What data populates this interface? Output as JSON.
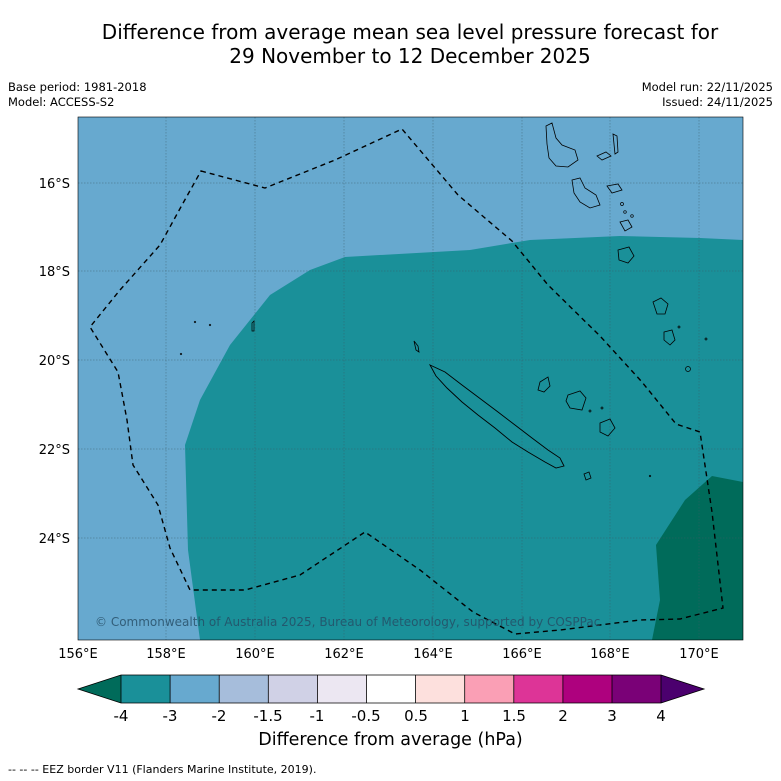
{
  "title_line1": "Difference from average mean sea level pressure forecast for",
  "title_line2": "29 November to 12 December 2025",
  "meta": {
    "base_period": "Base period: 1981-2018",
    "model": "Model: ACCESS-S2",
    "model_run": "Model run: 22/11/2025",
    "issued": "Issued: 24/11/2025"
  },
  "map": {
    "lon_labels": [
      "156°E",
      "158°E",
      "160°E",
      "162°E",
      "164°E",
      "166°E",
      "168°E",
      "170°E"
    ],
    "lat_labels": [
      "16°S",
      "18°S",
      "20°S",
      "22°S",
      "24°S"
    ],
    "copyright": "© Commonwealth of Australia 2025, Bureau of Meteorology, supported by COSPPac"
  },
  "colorbar": {
    "title": "Difference from average (hPa)",
    "ticks": [
      "-4",
      "-3",
      "-2",
      "-1.5",
      "-1",
      "-0.5",
      "0.5",
      "1",
      "1.5",
      "2",
      "3",
      "4"
    ],
    "under_color": "#006b5a",
    "over_color": "#4b006e",
    "colors": [
      "#1a9099",
      "#67a9cf",
      "#a6bddb",
      "#d0d1e6",
      "#ece7f2",
      "#ffffff",
      "#fde0dd",
      "#fa9fb5",
      "#dd3497",
      "#ae017e",
      "#7a0177"
    ]
  },
  "footer": "--  --  -- EEZ border V11 (Flanders Marine Institute, 2019)."
}
